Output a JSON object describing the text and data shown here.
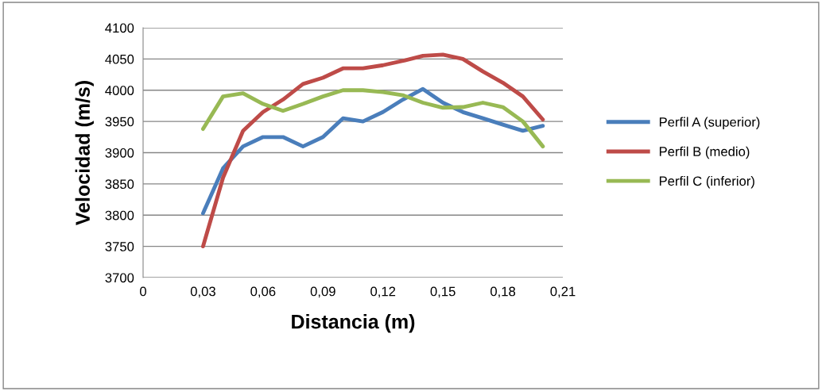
{
  "chart_data": {
    "type": "line",
    "xlabel": "Distancia (m)",
    "ylabel": "Velocidad (m/s)",
    "x": [
      0.03,
      0.04,
      0.05,
      0.06,
      0.07,
      0.08,
      0.09,
      0.1,
      0.11,
      0.12,
      0.13,
      0.14,
      0.15,
      0.16,
      0.17,
      0.18,
      0.19,
      0.2
    ],
    "series": [
      {
        "name": "Perfil A (superior)",
        "color": "#4a7ebb",
        "values": [
          3803,
          3875,
          3910,
          3925,
          3925,
          3910,
          3925,
          3955,
          3950,
          3965,
          3985,
          4002,
          3980,
          3965,
          3955,
          3945,
          3935,
          3943
        ]
      },
      {
        "name": "Perfil B (medio)",
        "color": "#be4b48",
        "values": [
          3750,
          3860,
          3935,
          3965,
          3985,
          4010,
          4020,
          4035,
          4035,
          4040,
          4047,
          4055,
          4057,
          4050,
          4030,
          4012,
          3990,
          3953
        ]
      },
      {
        "name": "Perfil C (inferior)",
        "color": "#98b954",
        "values": [
          3938,
          3990,
          3995,
          3978,
          3967,
          3978,
          3990,
          4000,
          4000,
          3997,
          3992,
          3980,
          3972,
          3973,
          3980,
          3973,
          3950,
          3910
        ]
      }
    ],
    "xlim": [
      0,
      0.21
    ],
    "xticks": [
      0,
      {
        "value": 0.03,
        "label": "0,03"
      },
      {
        "value": 0.06,
        "label": "0,06"
      },
      {
        "value": 0.09,
        "label": "0,09"
      },
      {
        "value": 0.12,
        "label": "0,12"
      },
      {
        "value": 0.15,
        "label": "0,15"
      },
      {
        "value": 0.18,
        "label": "0,18"
      },
      {
        "value": 0.21,
        "label": "0,21"
      }
    ],
    "ylim": [
      3700,
      4100
    ],
    "yticks": [
      3700,
      3750,
      3800,
      3850,
      3900,
      3950,
      4000,
      4050,
      4100
    ],
    "grid": "y",
    "legend": "right",
    "marker": "none",
    "line_style": "solid"
  }
}
